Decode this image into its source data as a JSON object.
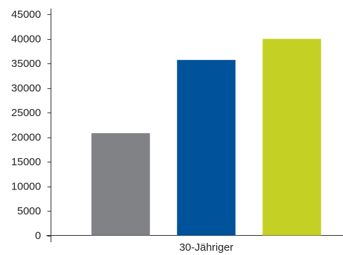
{
  "chart_data": {
    "type": "bar",
    "categories": [
      "30-Jähriger"
    ],
    "series": [
      {
        "values": [
          20800
        ],
        "color": "#808285"
      },
      {
        "values": [
          35700
        ],
        "color": "#00529b"
      },
      {
        "values": [
          40000
        ],
        "color": "#c4d124"
      }
    ],
    "ylim": [
      0,
      45000
    ],
    "yticks": [
      0,
      5000,
      10000,
      15000,
      20000,
      25000,
      30000,
      35000,
      40000,
      45000
    ],
    "grid": false,
    "legend": "none"
  }
}
